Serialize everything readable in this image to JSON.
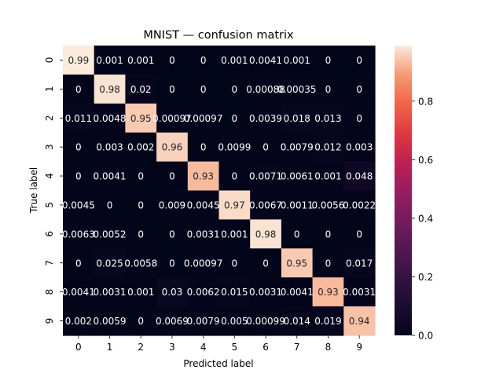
{
  "chart_data": {
    "type": "heatmap",
    "title": "MNIST — confusion matrix",
    "xlabel": "Predicted label",
    "ylabel": "True label",
    "x_categories": [
      "0",
      "1",
      "2",
      "3",
      "4",
      "5",
      "6",
      "7",
      "8",
      "9"
    ],
    "y_categories": [
      "0",
      "1",
      "2",
      "3",
      "4",
      "5",
      "6",
      "7",
      "8",
      "9"
    ],
    "values": [
      [
        0.99,
        0.001,
        0.001,
        0,
        0,
        0.001,
        0.0041,
        0.001,
        0,
        0
      ],
      [
        0,
        0.98,
        0.02,
        0,
        0,
        0,
        0.00088,
        0.00035,
        0,
        0
      ],
      [
        0.011,
        0.0048,
        0.95,
        0.00097,
        0.00097,
        0,
        0.0039,
        0.018,
        0.013,
        0
      ],
      [
        0,
        0.003,
        0.002,
        0.96,
        0,
        0.0099,
        0,
        0.0079,
        0.012,
        0.003
      ],
      [
        0,
        0.0041,
        0,
        0,
        0.93,
        0,
        0.0071,
        0.0061,
        0.001,
        0.048
      ],
      [
        0.0045,
        0,
        0,
        0.009,
        0.0045,
        0.97,
        0.0067,
        0.0011,
        0.0056,
        0.0022
      ],
      [
        0.0063,
        0.0052,
        0,
        0,
        0.0031,
        0.001,
        0.98,
        0,
        0,
        0
      ],
      [
        0,
        0.025,
        0.0058,
        0,
        0.00097,
        0,
        0,
        0.95,
        0,
        0.017
      ],
      [
        0.0041,
        0.0031,
        0.001,
        0.03,
        0.0062,
        0.015,
        0.0031,
        0.0041,
        0.93,
        0.0031
      ],
      [
        0.002,
        0.0059,
        0,
        0.0069,
        0.0079,
        0.005,
        0.00099,
        0.014,
        0.019,
        0.94
      ]
    ],
    "value_labels": [
      [
        "0.99",
        "0.001",
        "0.001",
        "0",
        "0",
        "0.001",
        "0.0041",
        "0.001",
        "0",
        "0"
      ],
      [
        "0",
        "0.98",
        "0.02",
        "0",
        "0",
        "0",
        "0.00088",
        "0.00035",
        "0",
        "0"
      ],
      [
        "0.011",
        "0.0048",
        "0.95",
        "0.00097",
        "0.00097",
        "0",
        "0.0039",
        "0.018",
        "0.013",
        "0"
      ],
      [
        "0",
        "0.003",
        "0.002",
        "0.96",
        "0",
        "0.0099",
        "0",
        "0.0079",
        "0.012",
        "0.003"
      ],
      [
        "0",
        "0.0041",
        "0",
        "0",
        "0.93",
        "0",
        "0.0071",
        "0.0061",
        "0.001",
        "0.048"
      ],
      [
        "0.0045",
        "0",
        "0",
        "0.009",
        "0.0045",
        "0.97",
        "0.0067",
        "0.0011",
        "0.0056",
        "0.0022"
      ],
      [
        "0.0063",
        "0.0052",
        "0",
        "0",
        "0.0031",
        "0.001",
        "0.98",
        "0",
        "0",
        "0"
      ],
      [
        "0",
        "0.025",
        "0.0058",
        "0",
        "0.00097",
        "0",
        "0",
        "0.95",
        "0",
        "0.017"
      ],
      [
        "0.0041",
        "0.0031",
        "0.001",
        "0.03",
        "0.0062",
        "0.015",
        "0.0031",
        "0.0041",
        "0.93",
        "0.0031"
      ],
      [
        "0.002",
        "0.0059",
        "0",
        "0.0069",
        "0.0079",
        "0.005",
        "0.00099",
        "0.014",
        "0.019",
        "0.94"
      ]
    ],
    "colorbar": {
      "min": 0,
      "max": 0.99,
      "ticks": [
        0.0,
        0.2,
        0.4,
        0.6,
        0.8
      ],
      "tick_labels": [
        "0.0",
        "0.2",
        "0.4",
        "0.6",
        "0.8"
      ],
      "colormap": "rocket"
    },
    "grid": false
  }
}
